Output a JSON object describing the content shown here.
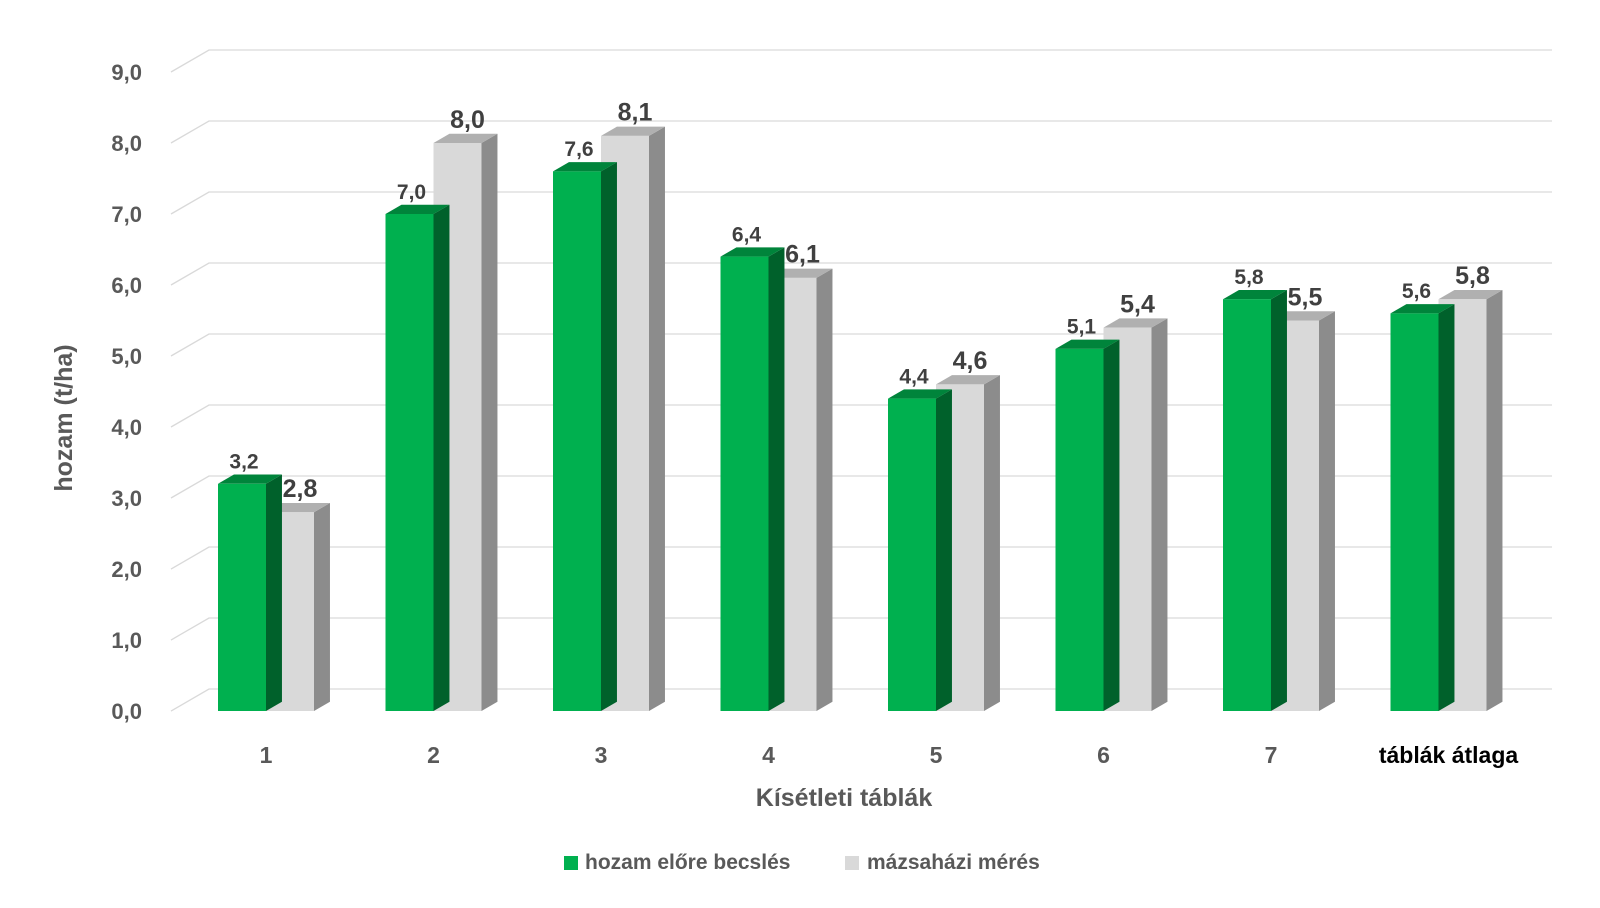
{
  "chart_data": {
    "type": "bar",
    "style": "3d-clustered-column",
    "categories": [
      "1",
      "2",
      "3",
      "4",
      "5",
      "6",
      "7",
      "táblák átlaga"
    ],
    "series": [
      {
        "name": "hozam előre becslés",
        "color": "#00b04f",
        "values": [
          3.2,
          7.0,
          7.6,
          6.4,
          4.4,
          5.1,
          5.8,
          5.6
        ],
        "labels": [
          "3,2",
          "7,0",
          "7,6",
          "6,4",
          "4,4",
          "5,1",
          "5,8",
          "5,6"
        ]
      },
      {
        "name": "mázsaházi mérés",
        "color": "#d9d9d9",
        "values": [
          2.8,
          8.0,
          8.1,
          6.1,
          4.6,
          5.4,
          5.5,
          5.8
        ],
        "labels": [
          "2,8",
          "8,0",
          "8,1",
          "6,1",
          "4,6",
          "5,4",
          "5,5",
          "5,8"
        ]
      }
    ],
    "title": "",
    "xlabel": "Kísétleti táblák",
    "ylabel": "hozam (t/ha)",
    "ylim": [
      0,
      9
    ],
    "yticks": [
      "0,0",
      "1,0",
      "2,0",
      "3,0",
      "4,0",
      "5,0",
      "6,0",
      "7,0",
      "8,0",
      "9,0"
    ],
    "grid": true,
    "legend_position": "bottom"
  }
}
